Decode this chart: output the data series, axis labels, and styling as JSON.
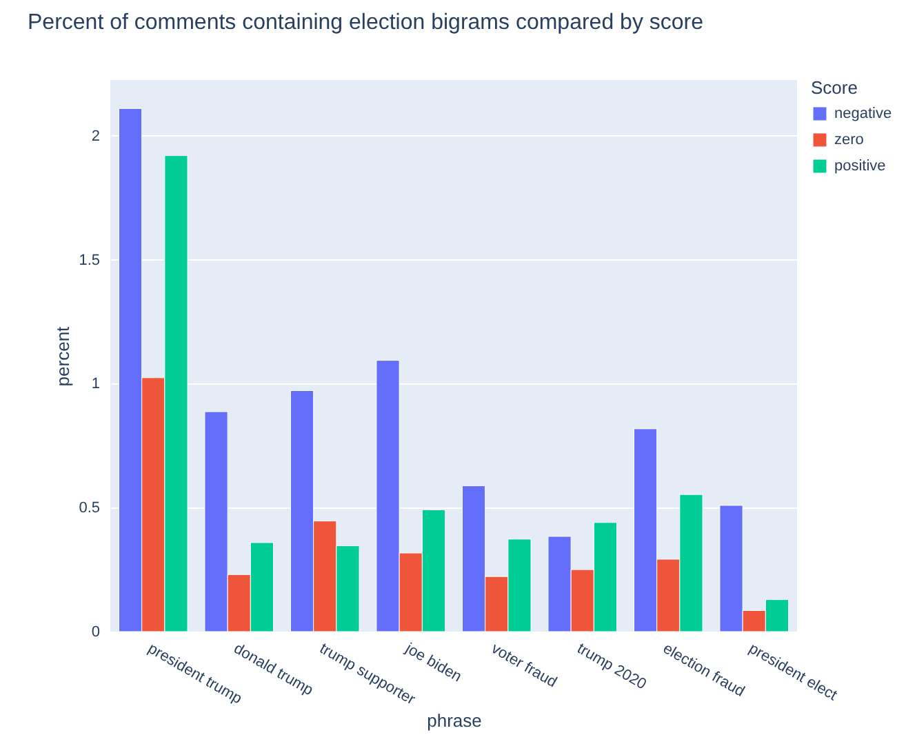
{
  "chart_data": {
    "type": "bar",
    "title": "Percent of comments containing election bigrams compared by score",
    "xlabel": "phrase",
    "ylabel": "percent",
    "legend_title": "Score",
    "categories": [
      "president trump",
      "donald trump",
      "trump supporter",
      "joe biden",
      "voter fraud",
      "trump 2020",
      "election fraud",
      "president elect"
    ],
    "series": [
      {
        "name": "negative",
        "color": "#636efa",
        "values": [
          2.11,
          0.887,
          0.972,
          1.094,
          0.588,
          0.384,
          0.818,
          0.509
        ]
      },
      {
        "name": "zero",
        "color": "#ef553b",
        "values": [
          1.024,
          0.23,
          0.446,
          0.317,
          0.222,
          0.25,
          0.292,
          0.085
        ]
      },
      {
        "name": "positive",
        "color": "#00cc96",
        "values": [
          1.92,
          0.359,
          0.346,
          0.491,
          0.373,
          0.44,
          0.553,
          0.129
        ]
      }
    ],
    "ylim": [
      0,
      2.225
    ],
    "yticks": [
      0,
      0.5,
      1,
      1.5,
      2
    ],
    "grid": "y",
    "legend": "top right"
  }
}
